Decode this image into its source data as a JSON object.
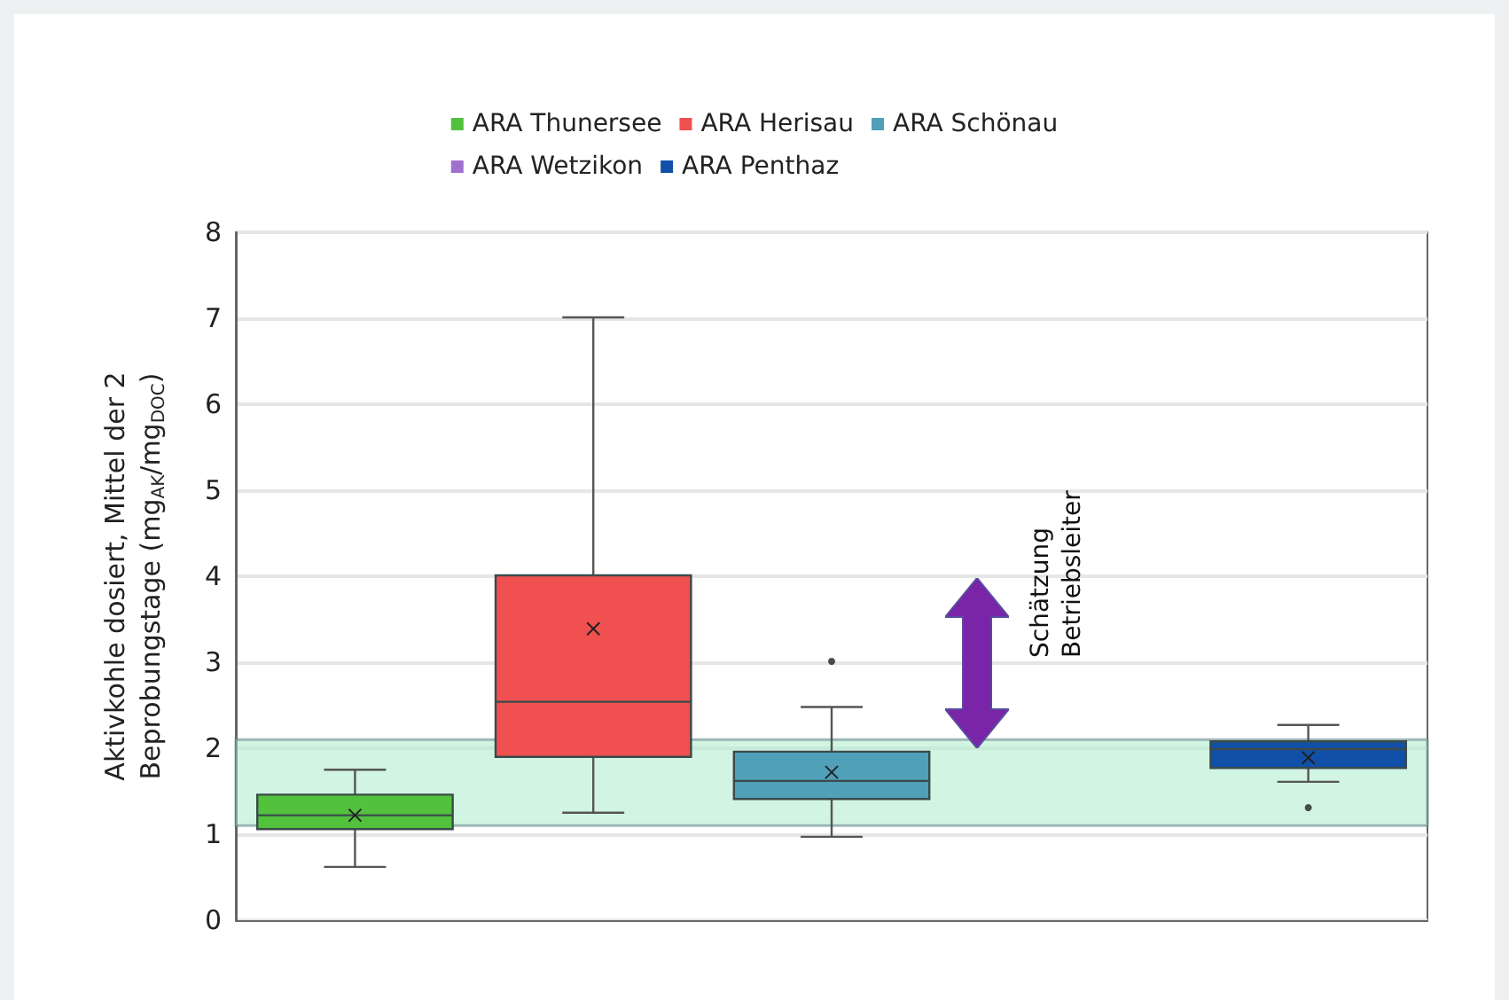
{
  "chart_data": {
    "type": "box",
    "ylabel": "Aktivkohle dosiert, Mittel der 2 Beprobungstage (mg$_{AK}$/mg$_{DOC}$)",
    "categories": [
      null,
      null,
      null,
      null,
      null
    ],
    "series": [
      {
        "name": "ARA Thunersee",
        "color": "#52c13c",
        "boxes": [
          {
            "low": 0.62,
            "q1": 1.06,
            "median": 1.22,
            "q3": 1.46,
            "high": 1.75,
            "mean": 1.22
          },
          null,
          null,
          null,
          null
        ]
      },
      {
        "name": "ARA Herisau",
        "color": "#f05050",
        "boxes": [
          null,
          {
            "low": 1.25,
            "q1": 1.9,
            "median": 2.54,
            "q3": 4.01,
            "high": 7.01,
            "mean": 3.39
          },
          null,
          null,
          null
        ]
      },
      {
        "name": "ARA Schönau",
        "color": "#4fa0b8",
        "boxes": [
          null,
          null,
          {
            "low": 0.97,
            "q1": 1.41,
            "median": 1.62,
            "q3": 1.96,
            "high": 2.48,
            "mean": 1.72,
            "outliers": [
              3.01
            ]
          },
          null,
          null
        ]
      },
      {
        "name": "ARA Wetzikon",
        "color": "#a070d0",
        "boxes": [
          null,
          null,
          null,
          null,
          null
        ]
      },
      {
        "name": "ARA Penthaz",
        "color": "#1050a8",
        "boxes": [
          null,
          null,
          null,
          null,
          {
            "low": 1.61,
            "q1": 1.77,
            "median": 1.99,
            "q3": 2.08,
            "high": 2.27,
            "mean": 1.89,
            "outliers": [
              1.31
            ]
          }
        ]
      }
    ],
    "bands": [
      {
        "axis": "y",
        "from": 1.1,
        "to": 2.1,
        "color": "#b4ecd0"
      }
    ],
    "annotations": [
      "Schätzung Betriebsleiter"
    ],
    "ylim": [
      0,
      8
    ],
    "yticks": [
      0,
      1,
      2,
      3,
      4,
      5,
      6,
      7,
      8
    ],
    "grid": "y",
    "legend": "top"
  }
}
